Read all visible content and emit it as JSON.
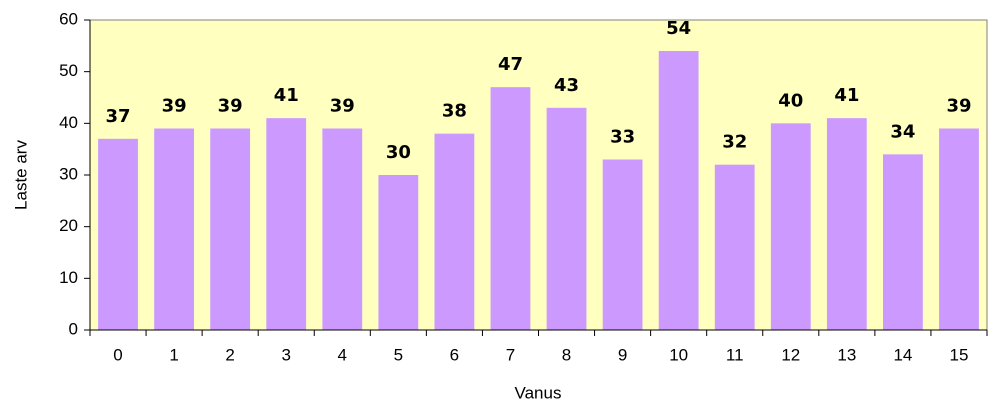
{
  "chart_data": {
    "type": "bar",
    "x_label": "Vanus",
    "y_label": "Laste arv",
    "categories": [
      "0",
      "1",
      "2",
      "3",
      "4",
      "5",
      "6",
      "7",
      "8",
      "9",
      "10",
      "11",
      "12",
      "13",
      "14",
      "15"
    ],
    "values": [
      37,
      39,
      39,
      41,
      39,
      30,
      38,
      47,
      43,
      33,
      54,
      32,
      40,
      41,
      34,
      39
    ],
    "color": "#cc99ff",
    "plot_background": "#ffffc0",
    "ylim": [
      0,
      60
    ],
    "yticks": [
      0,
      10,
      20,
      30,
      40,
      50,
      60
    ],
    "grid": false
  }
}
